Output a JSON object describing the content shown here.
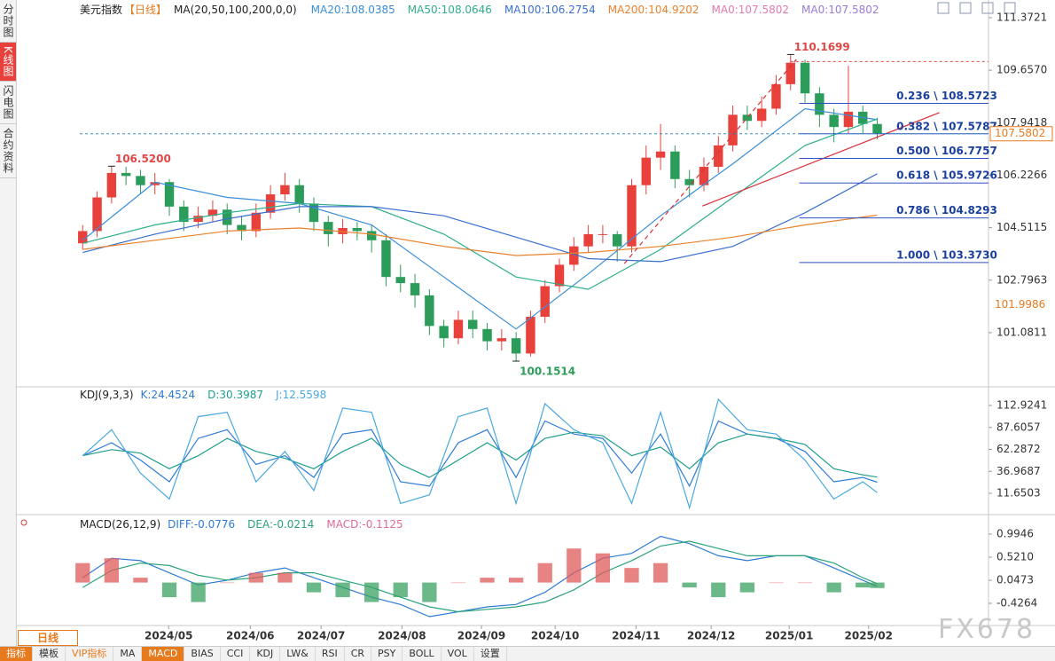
{
  "sidebar": [
    "分时图",
    "K线图",
    "闪电图",
    "合约资料"
  ],
  "sidebar_active": 1,
  "period": "日线",
  "watermark": "FX678",
  "bottom_tabs": [
    "指标",
    "模板",
    "VIP指标",
    "MA",
    "MACD",
    "BIAS",
    "CCI",
    "KDJ",
    "LW&",
    "RSI",
    "CR",
    "PSY",
    "BOLL",
    "VOL",
    "设置"
  ],
  "active_tab": 4,
  "chart_data": [
    {
      "type": "candlestick",
      "title": "美元指数",
      "period_tag": "【日线】",
      "indicator": "MA(20,50,100,200,0,0)",
      "up_color": "#e8413c",
      "down_color": "#2c9c5a",
      "xlim": [
        -0.2,
        62.7
      ],
      "ylim": [
        99.34,
        111.95
      ],
      "xticks": [
        {
          "value": 5.95,
          "label": "2024/05"
        },
        {
          "value": 11.6,
          "label": "2024/06"
        },
        {
          "value": 16.5,
          "label": "2024/07"
        },
        {
          "value": 22.1,
          "label": "2024/08"
        },
        {
          "value": 27.6,
          "label": "2024/09"
        },
        {
          "value": 32.7,
          "label": "2024/10"
        },
        {
          "value": 38.3,
          "label": "2024/11"
        },
        {
          "value": 43.5,
          "label": "2024/12"
        },
        {
          "value": 48.9,
          "label": "2025/01"
        },
        {
          "value": 54.4,
          "label": "2025/02"
        }
      ],
      "yticks": [
        111.3721,
        {
          "value": 109.657,
          "label": "109.6570"
        },
        107.9418,
        106.2266,
        104.5115,
        102.7963,
        101.0811
      ],
      "x": [
        0,
        1,
        2,
        3,
        4,
        5,
        6,
        7,
        8,
        9,
        10,
        11,
        12,
        13,
        14,
        15,
        16,
        17,
        18,
        19,
        20,
        21,
        22,
        23,
        24,
        25,
        26,
        27,
        28,
        29,
        30,
        31,
        32,
        33,
        34,
        35,
        36,
        37,
        38,
        39,
        40,
        41,
        42,
        43,
        44,
        45,
        46,
        47,
        48,
        49,
        50,
        51,
        52,
        53,
        54,
        55
      ],
      "open": [
        104.0,
        104.4,
        105.5,
        106.3,
        106.2,
        105.9,
        106.0,
        105.2,
        104.7,
        104.9,
        105.1,
        104.6,
        104.4,
        105.0,
        105.6,
        105.9,
        105.3,
        104.7,
        104.3,
        104.5,
        104.4,
        104.1,
        102.9,
        102.7,
        102.3,
        101.3,
        100.9,
        101.5,
        101.2,
        100.8,
        100.9,
        100.4,
        101.6,
        102.6,
        103.3,
        103.9,
        104.3,
        104.3,
        103.9,
        105.9,
        106.8,
        107.0,
        106.1,
        105.9,
        106.5,
        107.2,
        108.2,
        108.0,
        108.4,
        109.2,
        109.9,
        108.9,
        108.2,
        107.8,
        108.3,
        107.9
      ],
      "high": [
        104.6,
        105.7,
        106.52,
        106.5,
        106.4,
        106.3,
        106.1,
        105.4,
        105.2,
        105.4,
        105.3,
        104.9,
        105.3,
        105.9,
        106.3,
        106.1,
        105.5,
        104.9,
        104.8,
        104.7,
        104.6,
        104.3,
        103.3,
        103.0,
        102.5,
        101.5,
        101.8,
        101.8,
        101.4,
        101.2,
        101.1,
        101.8,
        102.8,
        103.5,
        104.2,
        104.6,
        104.6,
        104.4,
        106.1,
        107.2,
        107.9,
        107.2,
        106.4,
        106.8,
        107.5,
        108.5,
        108.5,
        108.8,
        109.5,
        110.1699,
        110.0,
        109.1,
        108.4,
        109.8,
        108.5,
        108.1
      ],
      "low": [
        103.8,
        104.2,
        105.3,
        105.9,
        105.6,
        105.6,
        104.9,
        104.4,
        104.5,
        104.7,
        104.3,
        104.1,
        104.2,
        104.8,
        105.4,
        105.0,
        104.4,
        103.9,
        104.0,
        104.1,
        103.7,
        102.6,
        102.4,
        101.9,
        101.0,
        100.6,
        100.7,
        100.9,
        100.5,
        100.5,
        100.1514,
        100.3,
        101.4,
        102.4,
        103.1,
        103.7,
        104.0,
        103.4,
        103.7,
        105.6,
        106.4,
        105.8,
        105.5,
        105.7,
        106.3,
        107.0,
        107.7,
        107.8,
        108.2,
        109.0,
        108.6,
        107.8,
        107.3,
        107.6,
        107.6,
        107.4
      ],
      "close": [
        104.4,
        105.5,
        106.3,
        106.2,
        105.9,
        106.0,
        105.2,
        104.7,
        104.9,
        105.1,
        104.6,
        104.4,
        105.0,
        105.6,
        105.9,
        105.3,
        104.7,
        104.3,
        104.5,
        104.4,
        104.1,
        102.9,
        102.7,
        102.3,
        101.3,
        100.9,
        101.5,
        101.2,
        100.8,
        100.9,
        100.4,
        101.6,
        102.6,
        103.3,
        103.9,
        104.3,
        104.3,
        103.9,
        105.9,
        106.8,
        107.0,
        106.1,
        105.9,
        106.5,
        107.2,
        108.2,
        108.0,
        108.4,
        109.2,
        109.9,
        108.9,
        108.2,
        107.8,
        108.3,
        107.9,
        107.58
      ],
      "series": [
        {
          "name": "MA20:108.0385",
          "color": "#3a8ed8",
          "x": [
            0,
            5,
            10,
            15,
            20,
            25,
            30,
            35,
            40,
            45,
            50,
            55
          ],
          "values": [
            104.1,
            106.0,
            105.5,
            105.3,
            104.6,
            102.9,
            101.2,
            103.0,
            104.9,
            106.6,
            108.4,
            108.0385
          ]
        },
        {
          "name": "MA50:108.0646",
          "color": "#2fae8a",
          "x": [
            0,
            5,
            10,
            15,
            20,
            25,
            30,
            35,
            40,
            45,
            50,
            55
          ],
          "values": [
            104.0,
            104.6,
            105.0,
            105.3,
            105.2,
            104.3,
            102.9,
            102.5,
            103.8,
            105.5,
            107.2,
            108.0646
          ]
        },
        {
          "name": "MA100:106.2754",
          "color": "#3b6fd0",
          "x": [
            0,
            5,
            10,
            15,
            20,
            25,
            30,
            35,
            40,
            45,
            50,
            55
          ],
          "values": [
            103.7,
            104.3,
            104.8,
            105.2,
            105.2,
            104.9,
            104.2,
            103.5,
            103.4,
            103.9,
            105.0,
            106.2754
          ]
        },
        {
          "name": "MA200:104.9202",
          "color": "#e8822d",
          "x": [
            0,
            5,
            10,
            15,
            20,
            25,
            30,
            35,
            40,
            45,
            50,
            55
          ],
          "values": [
            103.8,
            104.1,
            104.4,
            104.5,
            104.3,
            103.9,
            103.6,
            103.7,
            103.9,
            104.2,
            104.6,
            104.9202
          ]
        }
      ],
      "legend_extra": [
        {
          "name": "MA0:107.5802",
          "color": "#e07ab0"
        },
        {
          "name": "MA0:107.5802",
          "color": "#9b7bd6"
        }
      ],
      "annotations": [
        {
          "label": "106.5200",
          "value": 106.52,
          "x": 2,
          "color": "#e04848",
          "position": "above",
          "dashed": false
        },
        {
          "label": "100.1514",
          "value": 100.1514,
          "x": 30,
          "color": "#2c9c5a",
          "position": "below",
          "dashed": false
        },
        {
          "label": "110.1699",
          "value": 110.1699,
          "x": 49,
          "color": "#e04848",
          "position": "above",
          "dashed": true
        }
      ],
      "last_price": {
        "value": 107.5802,
        "label": "107.5802",
        "color": "#e87a1e"
      },
      "axis_marker": {
        "value": 101.9986,
        "label": "101.9986",
        "color": "#e87a1e"
      },
      "fib_start_x": 49.6,
      "fib_color": "#2b4fc7",
      "fib_levels": [
        {
          "value": 108.5723,
          "label": "0.236 \\ 108.5723"
        },
        {
          "value": 107.5787,
          "label": "0.382 \\ 107.5787"
        },
        {
          "value": 106.7757,
          "label": "0.500 \\ 106.7757"
        },
        {
          "value": 105.9726,
          "label": "0.618 \\ 105.9726"
        },
        {
          "value": 104.8293,
          "label": "0.786 \\ 104.8293"
        },
        {
          "value": 103.373,
          "label": "1.000 \\ 103.3730"
        }
      ],
      "trendlines": [
        {
          "x": [
            42.9,
            59.3
          ],
          "values": [
            105.22,
            108.27
          ],
          "color": "#d9303a",
          "dashed": false
        },
        {
          "x": [
            37.5,
            49.4
          ],
          "values": [
            103.34,
            110.01
          ],
          "color": "#d9303a",
          "dashed": true
        }
      ]
    },
    {
      "type": "line",
      "title": "KDJ(9,3,3)",
      "xlim": [
        -0.2,
        62.7
      ],
      "ylim": [
        -10.8,
        130.3
      ],
      "yticks": [
        112.9241,
        87.6057,
        62.2872,
        36.9687,
        11.6503
      ],
      "series": [
        {
          "name": "K:24.4524",
          "color": "#2e7bd6",
          "x": [
            0,
            2,
            4,
            6,
            8,
            10,
            12,
            14,
            16,
            18,
            20,
            22,
            24,
            26,
            28,
            30,
            32,
            34,
            36,
            38,
            40,
            42,
            44,
            46,
            48,
            50,
            52,
            54,
            55
          ],
          "values": [
            55,
            70,
            50,
            25,
            75,
            85,
            45,
            55,
            30,
            80,
            85,
            25,
            20,
            70,
            85,
            30,
            95,
            80,
            75,
            35,
            80,
            20,
            95,
            80,
            75,
            60,
            25,
            30,
            24.4524
          ]
        },
        {
          "name": "D:30.3987",
          "color": "#1f9e8c",
          "x": [
            0,
            2,
            4,
            6,
            8,
            10,
            12,
            14,
            16,
            18,
            20,
            22,
            24,
            26,
            28,
            30,
            32,
            34,
            36,
            38,
            40,
            42,
            44,
            46,
            48,
            50,
            52,
            54,
            55
          ],
          "values": [
            55,
            62,
            58,
            40,
            55,
            75,
            60,
            52,
            40,
            60,
            75,
            45,
            30,
            50,
            70,
            50,
            75,
            82,
            78,
            55,
            65,
            40,
            70,
            80,
            75,
            68,
            40,
            33,
            30.3987
          ]
        },
        {
          "name": "J:12.5598",
          "color": "#4aa8e0",
          "x": [
            0,
            2,
            4,
            6,
            8,
            10,
            12,
            14,
            16,
            18,
            20,
            22,
            24,
            26,
            28,
            30,
            32,
            34,
            36,
            38,
            40,
            42,
            44,
            46,
            48,
            50,
            52,
            54,
            55
          ],
          "values": [
            55,
            85,
            35,
            5,
            100,
            105,
            25,
            60,
            15,
            110,
            105,
            0,
            10,
            100,
            110,
            0,
            115,
            85,
            70,
            0,
            105,
            -5,
            120,
            85,
            80,
            50,
            5,
            25,
            12.5598
          ]
        }
      ]
    },
    {
      "type": "macd",
      "title": "MACD(26,12,9)",
      "xlim": [
        -0.2,
        62.7
      ],
      "ylim": [
        -0.882,
        1.25
      ],
      "yticks": [
        0.9946,
        {
          "value": 0.521,
          "label": "0.5210"
        },
        0.0473,
        -0.4264
      ],
      "up_color": "#e05a5a",
      "down_color": "#3aa060",
      "series": [
        {
          "name": "DIFF:-0.0776",
          "color": "#2e7bd6",
          "x": [
            0,
            2,
            4,
            6,
            8,
            10,
            12,
            14,
            16,
            18,
            20,
            22,
            24,
            26,
            28,
            30,
            32,
            34,
            36,
            38,
            40,
            42,
            44,
            46,
            48,
            50,
            52,
            54,
            55
          ],
          "values": [
            0.1,
            0.5,
            0.45,
            0.2,
            -0.05,
            0.05,
            0.2,
            0.3,
            0.1,
            -0.1,
            -0.3,
            -0.45,
            -0.7,
            -0.6,
            -0.5,
            -0.45,
            -0.2,
            0.2,
            0.5,
            0.6,
            0.95,
            0.8,
            0.55,
            0.45,
            0.55,
            0.55,
            0.3,
            0.05,
            -0.0776
          ]
        },
        {
          "name": "DEA:-0.0214",
          "color": "#2aa37a",
          "x": [
            0,
            2,
            4,
            6,
            8,
            10,
            12,
            14,
            16,
            18,
            20,
            22,
            24,
            26,
            28,
            30,
            32,
            34,
            36,
            38,
            40,
            42,
            44,
            46,
            48,
            50,
            52,
            54,
            55
          ],
          "values": [
            -0.1,
            0.25,
            0.4,
            0.35,
            0.15,
            0.05,
            0.1,
            0.2,
            0.2,
            0.05,
            -0.1,
            -0.3,
            -0.5,
            -0.6,
            -0.55,
            -0.5,
            -0.4,
            -0.15,
            0.2,
            0.45,
            0.75,
            0.85,
            0.7,
            0.55,
            0.55,
            0.55,
            0.4,
            0.1,
            -0.0214
          ]
        },
        {
          "name": "MACD:-0.1125",
          "color": "#e06a9a",
          "bars": true,
          "x": [
            0,
            2,
            4,
            6,
            8,
            10,
            12,
            14,
            16,
            18,
            20,
            22,
            24,
            26,
            28,
            30,
            32,
            34,
            36,
            38,
            40,
            42,
            44,
            46,
            48,
            50,
            52,
            54,
            55
          ],
          "values": [
            0.4,
            0.5,
            0.1,
            -0.3,
            -0.4,
            0,
            0.2,
            0.2,
            -0.2,
            -0.3,
            -0.4,
            -0.3,
            -0.4,
            0,
            0.1,
            0.1,
            0.4,
            0.7,
            0.6,
            0.3,
            0.4,
            -0.1,
            -0.3,
            -0.2,
            0,
            0,
            -0.2,
            -0.1,
            -0.1125
          ]
        }
      ]
    }
  ]
}
